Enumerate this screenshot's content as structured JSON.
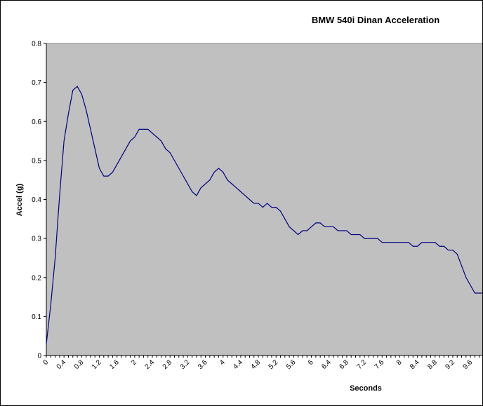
{
  "chart_data": {
    "type": "line",
    "title": "BMW 540i Dinan Acceleration",
    "xlabel": "Seconds",
    "ylabel": "Accel (g)",
    "xlim": [
      0,
      9.9
    ],
    "ylim": [
      0,
      0.8
    ],
    "grid": false,
    "legend": "none",
    "plot_background": "#c0c0c0",
    "line_color": "#000080",
    "y_ticks": [
      "0",
      "0.1",
      "0.2",
      "0.3",
      "0.4",
      "0.5",
      "0.6",
      "0.7",
      "0.8"
    ],
    "y_tick_values": [
      0,
      0.1,
      0.2,
      0.3,
      0.4,
      0.5,
      0.6,
      0.7,
      0.8
    ],
    "x_ticks": [
      "0",
      "0.4",
      "0.8",
      "1.2",
      "1.6",
      "2",
      "2.4",
      "2.8",
      "3.2",
      "3.6",
      "4",
      "4.4",
      "4.8",
      "5.2",
      "5.6",
      "6",
      "6.4",
      "6.8",
      "7.2",
      "7.6",
      "8",
      "8.4",
      "8.8",
      "9.2",
      "9.6"
    ],
    "x_tick_values": [
      0,
      0.4,
      0.8,
      1.2,
      1.6,
      2,
      2.4,
      2.8,
      3.2,
      3.6,
      4,
      4.4,
      4.8,
      5.2,
      5.6,
      6,
      6.4,
      6.8,
      7.2,
      7.6,
      8,
      8.4,
      8.8,
      9.2,
      9.6
    ],
    "x": [
      0,
      0.1,
      0.2,
      0.3,
      0.4,
      0.5,
      0.6,
      0.7,
      0.8,
      0.9,
      1.0,
      1.1,
      1.2,
      1.3,
      1.4,
      1.5,
      1.6,
      1.7,
      1.8,
      1.9,
      2.0,
      2.1,
      2.2,
      2.3,
      2.4,
      2.5,
      2.6,
      2.7,
      2.8,
      2.9,
      3.0,
      3.1,
      3.2,
      3.3,
      3.4,
      3.5,
      3.6,
      3.7,
      3.8,
      3.9,
      4.0,
      4.1,
      4.2,
      4.3,
      4.4,
      4.5,
      4.6,
      4.7,
      4.8,
      4.9,
      5.0,
      5.1,
      5.2,
      5.3,
      5.4,
      5.5,
      5.6,
      5.7,
      5.8,
      5.9,
      6.0,
      6.1,
      6.2,
      6.3,
      6.4,
      6.5,
      6.6,
      6.7,
      6.8,
      6.9,
      7.0,
      7.1,
      7.2,
      7.3,
      7.4,
      7.5,
      7.6,
      7.7,
      7.8,
      7.9,
      8.0,
      8.1,
      8.2,
      8.3,
      8.4,
      8.5,
      8.6,
      8.7,
      8.8,
      8.9,
      9.0,
      9.1,
      9.2,
      9.3,
      9.4,
      9.5,
      9.6,
      9.7,
      9.8,
      9.9
    ],
    "y": [
      0.03,
      0.13,
      0.25,
      0.41,
      0.55,
      0.62,
      0.68,
      0.69,
      0.67,
      0.63,
      0.58,
      0.53,
      0.48,
      0.46,
      0.46,
      0.47,
      0.49,
      0.51,
      0.53,
      0.55,
      0.56,
      0.58,
      0.58,
      0.58,
      0.57,
      0.56,
      0.55,
      0.53,
      0.52,
      0.5,
      0.48,
      0.46,
      0.44,
      0.42,
      0.41,
      0.43,
      0.44,
      0.45,
      0.47,
      0.48,
      0.47,
      0.45,
      0.44,
      0.43,
      0.42,
      0.41,
      0.4,
      0.39,
      0.39,
      0.38,
      0.39,
      0.38,
      0.38,
      0.37,
      0.35,
      0.33,
      0.32,
      0.31,
      0.32,
      0.32,
      0.33,
      0.34,
      0.34,
      0.33,
      0.33,
      0.33,
      0.32,
      0.32,
      0.32,
      0.31,
      0.31,
      0.31,
      0.3,
      0.3,
      0.3,
      0.3,
      0.29,
      0.29,
      0.29,
      0.29,
      0.29,
      0.29,
      0.29,
      0.28,
      0.28,
      0.29,
      0.29,
      0.29,
      0.29,
      0.28,
      0.28,
      0.27,
      0.27,
      0.26,
      0.23,
      0.2,
      0.18,
      0.16,
      0.16,
      0.16
    ]
  }
}
